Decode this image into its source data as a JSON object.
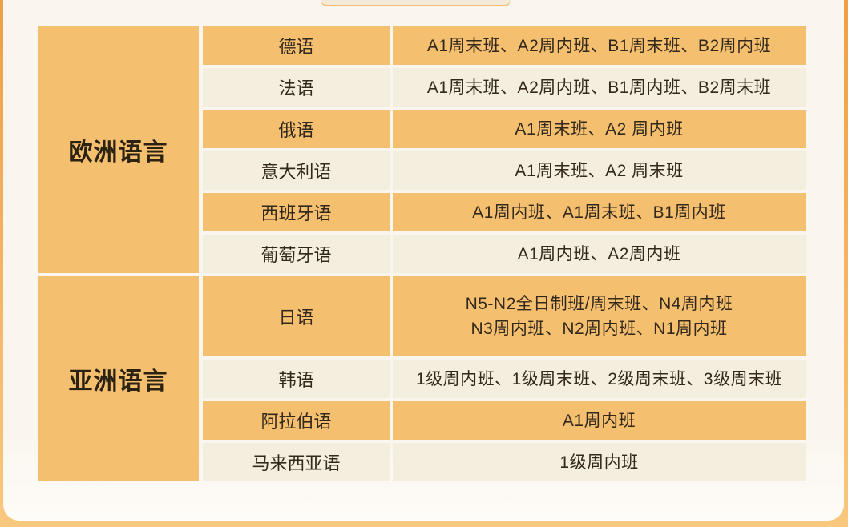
{
  "colors": {
    "cell_orange": "#F5BF70",
    "cell_cream": "#F4EEDE",
    "frame_top": "#EF9F44",
    "frame_bottom": "#F8C87E",
    "card_bg": "#FAF5EE",
    "text": "#33291B"
  },
  "table": {
    "sections": [
      {
        "group": "欧洲语言",
        "rows": [
          {
            "language": "德语",
            "classes": "A1周末班、A2周内班、B1周末班、B2周内班"
          },
          {
            "language": "法语",
            "classes": "A1周末班、A2周内班、B1周内班、B2周末班"
          },
          {
            "language": "俄语",
            "classes": "A1周末班、A2 周内班"
          },
          {
            "language": "意大利语",
            "classes": "A1周末班、A2 周末班"
          },
          {
            "language": "西班牙语",
            "classes": "A1周内班、A1周末班、B1周内班"
          },
          {
            "language": "葡萄牙语",
            "classes": "A1周内班、A2周内班"
          }
        ]
      },
      {
        "group": "亚洲语言",
        "rows": [
          {
            "language": "日语",
            "classes": "N5-N2全日制班/周末班、N4周内班\nN3周内班、N2周内班、N1周内班"
          },
          {
            "language": "韩语",
            "classes": "1级周内班、1级周末班、2级周末班、3级周末班"
          },
          {
            "language": "阿拉伯语",
            "classes": "A1周内班"
          },
          {
            "language": "马来西亚语",
            "classes": "1级周内班"
          }
        ]
      }
    ]
  }
}
